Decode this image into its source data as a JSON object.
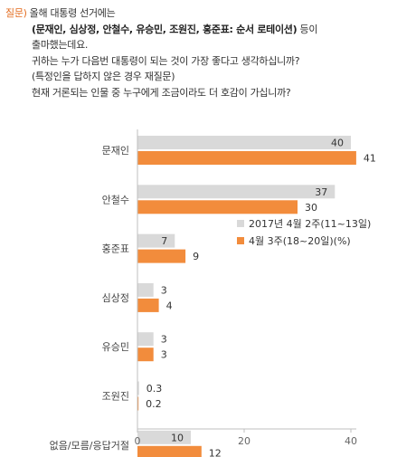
{
  "question": {
    "label": "질문)",
    "lines": [
      "올해 대통령 선거에는",
      "(문재인, 심상정, 안철수, 유승민, 조원진, 홍준표: 순서 로테이션)",
      "등이",
      "출마했는데요.",
      "귀하는 누가 다음번 대통령이 되는 것이 가장 좋다고 생각하십니까?",
      "(특정인을 답하지 않은 경우 재질문)",
      "현재 거론되는 인물 중 누구에게 조금이라도 더 호감이 가십니까?"
    ]
  },
  "chart_data": {
    "type": "bar",
    "orientation": "horizontal",
    "categories": [
      "문재인",
      "안철수",
      "홍준표",
      "심상정",
      "유승민",
      "조원진",
      "없음/모름/응답거절"
    ],
    "series": [
      {
        "name": "2017년 4월 2주(11~13일)",
        "values": [
          40,
          37,
          7,
          3,
          3,
          0.3,
          10
        ],
        "labels": [
          "40",
          "37",
          "7",
          "3",
          "3",
          "0.3",
          "10"
        ],
        "color": "#d9d9d9"
      },
      {
        "name": "4월 3주(18~20일)(%)",
        "values": [
          41,
          30,
          9,
          4,
          3,
          0.2,
          12
        ],
        "labels": [
          "41",
          "30",
          "9",
          "4",
          "3",
          "0.2",
          "12"
        ],
        "color": "#f28c3c"
      }
    ],
    "xlim": [
      0,
      42
    ],
    "xticks": [
      "0",
      "20",
      "40"
    ],
    "grid": false,
    "legend": "right-middle"
  }
}
